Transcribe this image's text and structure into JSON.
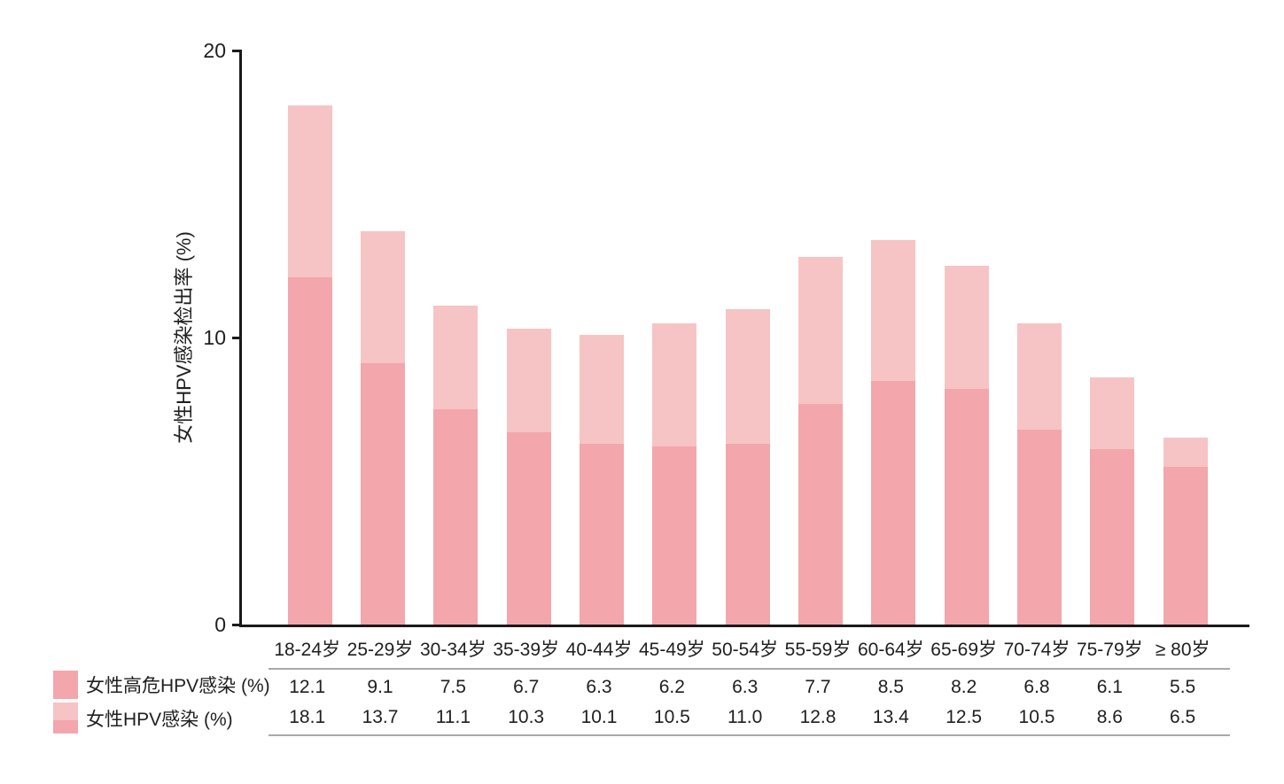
{
  "chart_data": {
    "type": "bar",
    "title": "",
    "bar_style": "overlay (total infection bar behind, high-risk bar in front, both anchored at zero)",
    "categories": [
      "18-24岁",
      "25-29岁",
      "30-34岁",
      "35-39岁",
      "40-44岁",
      "45-49岁",
      "50-54岁",
      "55-59岁",
      "60-64岁",
      "65-69岁",
      "70-74岁",
      "75-79岁",
      "≥ 80岁"
    ],
    "series": [
      {
        "name": "女性高危HPV感染 (%)",
        "values": [
          12.1,
          9.1,
          7.5,
          6.7,
          6.3,
          6.2,
          6.3,
          7.7,
          8.5,
          8.2,
          6.8,
          6.1,
          5.5
        ],
        "labels": [
          "12.1",
          "9.1",
          "7.5",
          "6.7",
          "6.3",
          "6.2",
          "6.3",
          "7.7",
          "8.5",
          "8.2",
          "6.8",
          "6.1",
          "5.5"
        ],
        "color": "#f3a6ab"
      },
      {
        "name": "女性HPV感染 (%)",
        "values": [
          18.1,
          13.7,
          11.1,
          10.3,
          10.1,
          10.5,
          11.0,
          12.8,
          13.4,
          12.5,
          10.5,
          8.6,
          6.5
        ],
        "labels": [
          "18.1",
          "13.7",
          "11.1",
          "10.3",
          "10.1",
          "10.5",
          "11.0",
          "12.8",
          "13.4",
          "12.5",
          "10.5",
          "8.6",
          "6.5"
        ],
        "color": "#f6c4c4"
      }
    ],
    "xlabel": "",
    "ylabel": "女性HPV感染检出率 (%)",
    "ylim": [
      0,
      20
    ],
    "yticks": [
      "0",
      "10",
      "20"
    ],
    "grid": false,
    "legend_position": "bottom-left",
    "data_table_below_axis": true
  },
  "colors": {
    "bar_dark": "#f3a6ab",
    "bar_light": "#f6c4c4",
    "axis": "#1a1a1a",
    "table_rule": "#a9a9a9",
    "text": "#1f1f1f",
    "background": "#ffffff"
  }
}
